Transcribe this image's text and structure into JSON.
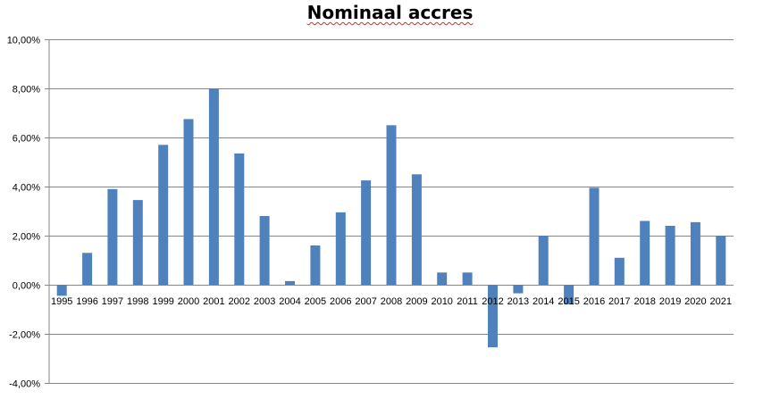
{
  "chart_data": {
    "type": "bar",
    "title": "Nominaal accres",
    "xlabel": "",
    "ylabel": "",
    "ylim": [
      -4,
      10
    ],
    "y_ticks": [
      "-4,00%",
      "-2,00%",
      "0,00%",
      "2,00%",
      "4,00%",
      "6,00%",
      "8,00%",
      "10,00%"
    ],
    "grid": true,
    "legend": "none",
    "bar_color": "#4f81bd",
    "categories": [
      "1995",
      "1996",
      "1997",
      "1998",
      "1999",
      "2000",
      "2001",
      "2002",
      "2003",
      "2004",
      "2005",
      "2006",
      "2007",
      "2008",
      "2009",
      "2010",
      "2011",
      "2012",
      "2013",
      "2014",
      "2015",
      "2016",
      "2017",
      "2018",
      "2019",
      "2020",
      "2021"
    ],
    "values": [
      -0.45,
      1.3,
      3.9,
      3.45,
      5.7,
      6.75,
      8.0,
      5.35,
      2.8,
      0.15,
      1.6,
      2.95,
      4.25,
      6.5,
      4.5,
      0.5,
      0.5,
      -2.55,
      -0.35,
      2.0,
      -0.8,
      3.95,
      1.1,
      2.6,
      2.4,
      2.55,
      2.0
    ]
  }
}
